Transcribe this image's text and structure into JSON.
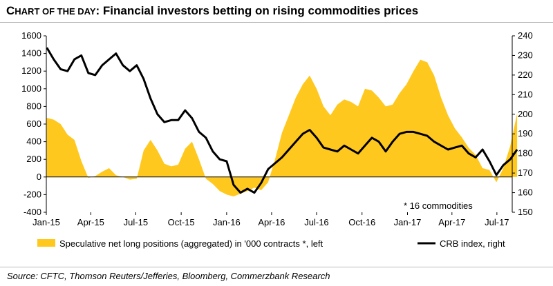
{
  "header": {
    "title_first_cap": "C",
    "title_smallcaps": "HART OF THE DAY",
    "title_rest": ": Financial investors betting on rising commodities prices"
  },
  "footer": {
    "source": "Source: CFTC, Thomson Reuters/Jefferies, Bloomberg, Commerzbank Research"
  },
  "chart_data": {
    "type": "line",
    "title": "",
    "annotation": "* 16 commodities",
    "xlabel": "",
    "x_ticks": [
      "Jan-15",
      "Apr-15",
      "Jul-15",
      "Oct-15",
      "Jan-16",
      "Apr-16",
      "Jul-16",
      "Oct-16",
      "Jan-17",
      "Apr-17",
      "Jul-17"
    ],
    "x_range": [
      "2015-01",
      "2017-08"
    ],
    "y_left": {
      "ticks": [
        "1600",
        "1400",
        "1200",
        "1000",
        "800",
        "600",
        "400",
        "200",
        "0",
        "-200",
        "-400"
      ],
      "range": [
        -400,
        1600
      ]
    },
    "y_right": {
      "ticks": [
        "240",
        "230",
        "220",
        "210",
        "200",
        "190",
        "180",
        "170",
        "160",
        "150"
      ],
      "range": [
        150,
        240
      ]
    },
    "grid": false,
    "legend_position": "bottom",
    "colors": {
      "area": "#FFC81E",
      "line": "#000000"
    },
    "series": [
      {
        "name": "Speculative net long positions (aggregated) in '000 contracts *, left",
        "type": "area",
        "axis": "left",
        "x": [
          "2015-01-02",
          "2015-01-16",
          "2015-01-30",
          "2015-02-13",
          "2015-02-27",
          "2015-03-13",
          "2015-03-27",
          "2015-04-10",
          "2015-04-24",
          "2015-05-08",
          "2015-05-22",
          "2015-06-05",
          "2015-06-19",
          "2015-07-03",
          "2015-07-17",
          "2015-07-31",
          "2015-08-14",
          "2015-08-28",
          "2015-09-11",
          "2015-09-25",
          "2015-10-09",
          "2015-10-23",
          "2015-11-06",
          "2015-11-20",
          "2015-12-04",
          "2015-12-18",
          "2016-01-01",
          "2016-01-15",
          "2016-01-29",
          "2016-02-12",
          "2016-02-26",
          "2016-03-11",
          "2016-03-25",
          "2016-04-08",
          "2016-04-22",
          "2016-05-06",
          "2016-05-20",
          "2016-06-03",
          "2016-06-17",
          "2016-07-01",
          "2016-07-15",
          "2016-07-29",
          "2016-08-12",
          "2016-08-26",
          "2016-09-09",
          "2016-09-23",
          "2016-10-07",
          "2016-10-21",
          "2016-11-04",
          "2016-11-18",
          "2016-12-02",
          "2016-12-16",
          "2016-12-30",
          "2017-01-13",
          "2017-01-27",
          "2017-02-10",
          "2017-02-24",
          "2017-03-10",
          "2017-03-24",
          "2017-04-07",
          "2017-04-21",
          "2017-05-05",
          "2017-05-19",
          "2017-06-02",
          "2017-06-16",
          "2017-06-30",
          "2017-07-14",
          "2017-07-28",
          "2017-08-11"
        ],
        "values": [
          670,
          650,
          600,
          480,
          420,
          180,
          -10,
          10,
          60,
          100,
          20,
          0,
          -30,
          -20,
          300,
          420,
          300,
          150,
          120,
          140,
          320,
          400,
          200,
          -20,
          -80,
          -160,
          -200,
          -220,
          -190,
          -160,
          -120,
          -150,
          -60,
          200,
          500,
          700,
          900,
          1050,
          1150,
          1000,
          800,
          700,
          820,
          880,
          850,
          800,
          1000,
          980,
          900,
          800,
          820,
          950,
          1050,
          1200,
          1330,
          1300,
          1150,
          900,
          700,
          550,
          450,
          330,
          250,
          100,
          80,
          -60,
          100,
          350,
          720
        ]
      },
      {
        "name": "CRB index, right",
        "type": "line",
        "axis": "right",
        "x": [
          "2015-01-02",
          "2015-01-16",
          "2015-01-30",
          "2015-02-13",
          "2015-02-27",
          "2015-03-13",
          "2015-03-27",
          "2015-04-10",
          "2015-04-24",
          "2015-05-08",
          "2015-05-22",
          "2015-06-05",
          "2015-06-19",
          "2015-07-03",
          "2015-07-17",
          "2015-07-31",
          "2015-08-14",
          "2015-08-28",
          "2015-09-11",
          "2015-09-25",
          "2015-10-09",
          "2015-10-23",
          "2015-11-06",
          "2015-11-20",
          "2015-12-04",
          "2015-12-18",
          "2016-01-01",
          "2016-01-15",
          "2016-01-29",
          "2016-02-12",
          "2016-02-26",
          "2016-03-11",
          "2016-03-25",
          "2016-04-08",
          "2016-04-22",
          "2016-05-06",
          "2016-05-20",
          "2016-06-03",
          "2016-06-17",
          "2016-07-01",
          "2016-07-15",
          "2016-07-29",
          "2016-08-12",
          "2016-08-26",
          "2016-09-09",
          "2016-09-23",
          "2016-10-07",
          "2016-10-21",
          "2016-11-04",
          "2016-11-18",
          "2016-12-02",
          "2016-12-16",
          "2016-12-30",
          "2017-01-13",
          "2017-01-27",
          "2017-02-10",
          "2017-02-24",
          "2017-03-10",
          "2017-03-24",
          "2017-04-07",
          "2017-04-21",
          "2017-05-05",
          "2017-05-19",
          "2017-06-02",
          "2017-06-16",
          "2017-06-30",
          "2017-07-14",
          "2017-07-28",
          "2017-08-11"
        ],
        "values": [
          234,
          228,
          223,
          222,
          228,
          230,
          221,
          220,
          225,
          228,
          231,
          225,
          222,
          225,
          218,
          208,
          200,
          196,
          197,
          197,
          202,
          198,
          191,
          188,
          181,
          177,
          176,
          164,
          160,
          162,
          160,
          165,
          172,
          175,
          178,
          182,
          186,
          190,
          192,
          188,
          183,
          182,
          181,
          184,
          182,
          180,
          184,
          188,
          186,
          181,
          186,
          190,
          191,
          191,
          190,
          189,
          186,
          184,
          182,
          183,
          184,
          180,
          178,
          182,
          176,
          169,
          174,
          177,
          182
        ]
      }
    ]
  }
}
